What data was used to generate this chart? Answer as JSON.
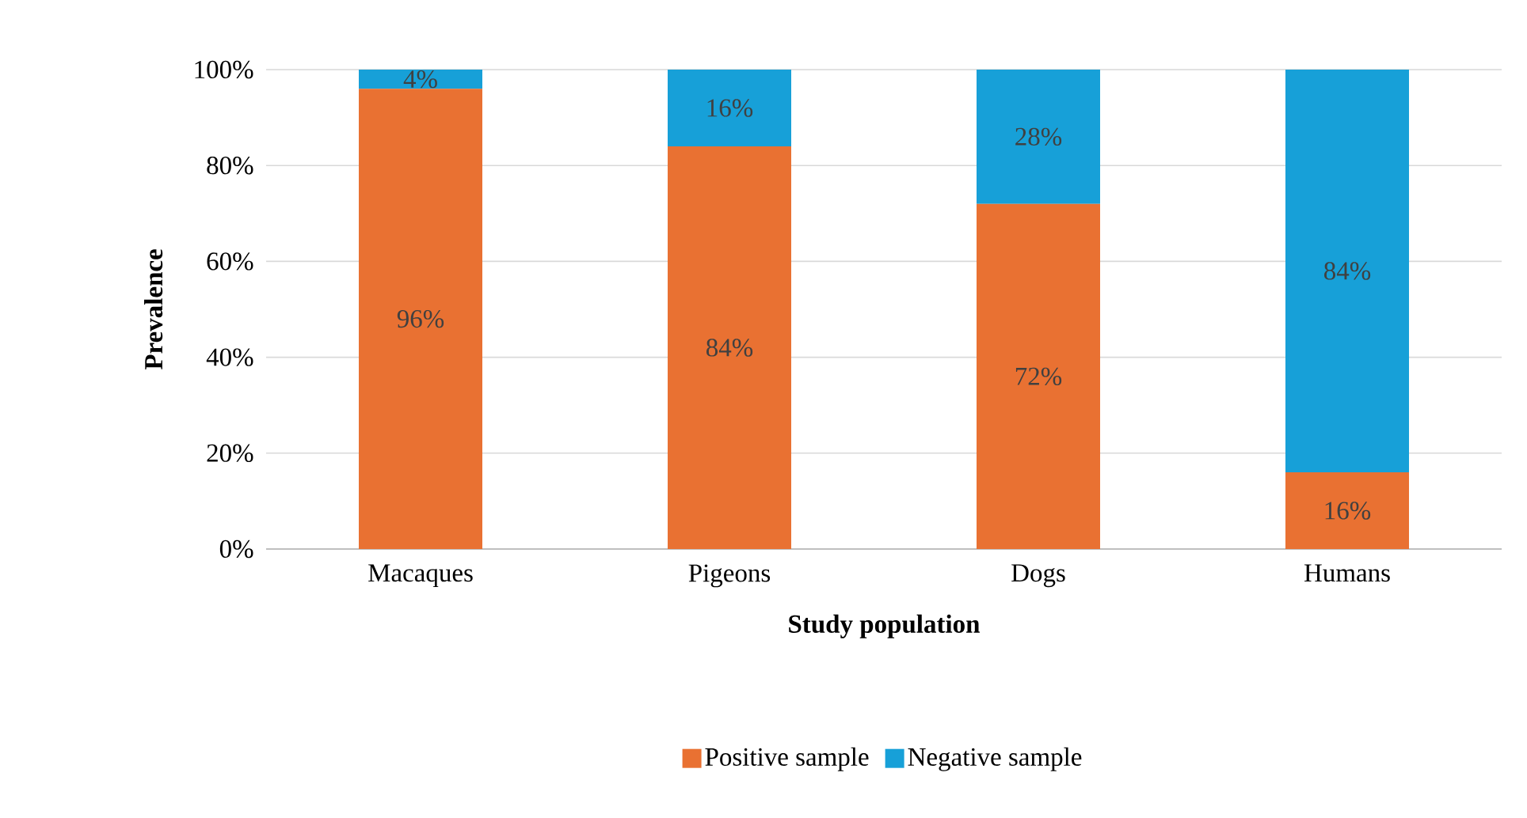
{
  "chart_data": {
    "type": "bar",
    "stacked": true,
    "xlabel": "Study population",
    "ylabel": "Prevalence",
    "categories": [
      "Macaques",
      "Pigeons",
      "Dogs",
      "Humans"
    ],
    "series": [
      {
        "name": "Positive sample",
        "color": "#e97132",
        "values": [
          96,
          84,
          72,
          16
        ],
        "value_labels": [
          "96%",
          "84%",
          "72%",
          "16%"
        ]
      },
      {
        "name": "Negative sample",
        "color": "#17a0d8",
        "values": [
          4,
          16,
          28,
          84
        ],
        "value_labels": [
          "4%",
          "16%",
          "28%",
          "84%"
        ]
      }
    ],
    "ylim": [
      0,
      100
    ],
    "yticks": [
      {
        "value": 0,
        "label": "0%"
      },
      {
        "value": 20,
        "label": "20%"
      },
      {
        "value": 40,
        "label": "40%"
      },
      {
        "value": 60,
        "label": "60%"
      },
      {
        "value": 80,
        "label": "80%"
      },
      {
        "value": 100,
        "label": "100%"
      }
    ],
    "grid": "y",
    "legend": "bottom"
  }
}
